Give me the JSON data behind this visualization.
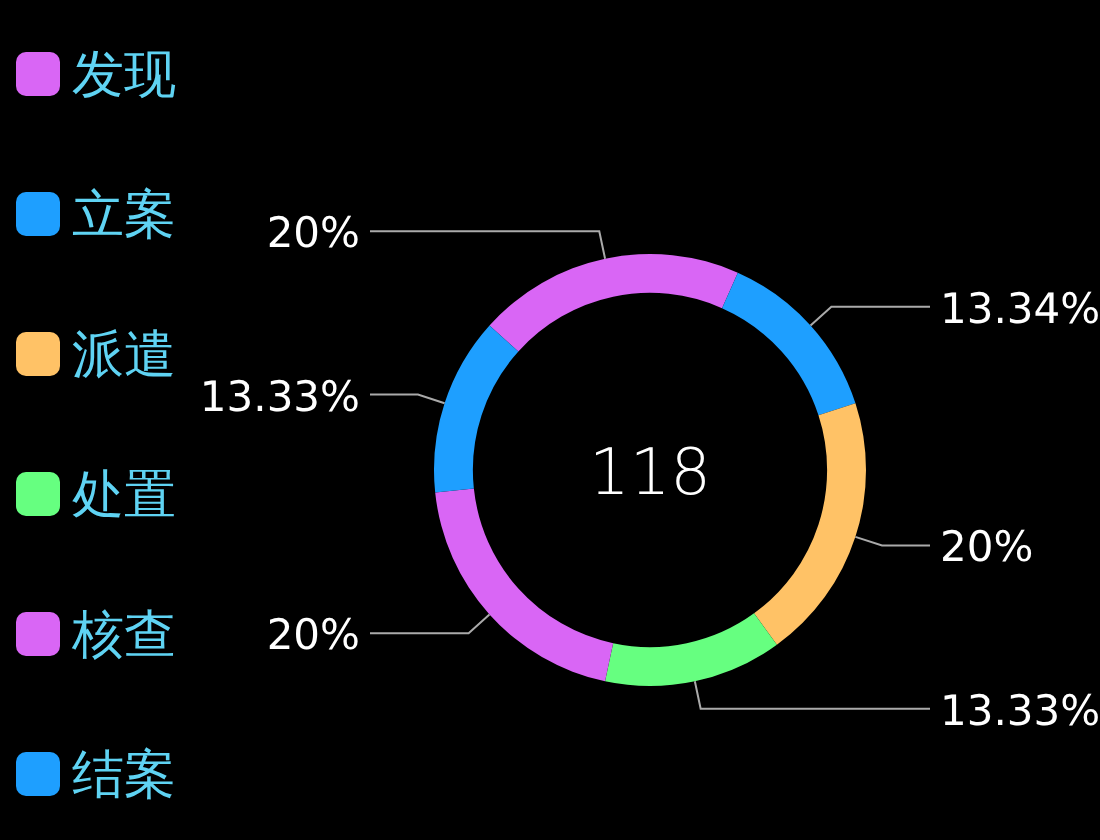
{
  "chart_data": {
    "type": "donut",
    "categories": [
      "发现",
      "立案",
      "派遣",
      "处置",
      "核查",
      "结案"
    ],
    "values": [
      20,
      13.34,
      20,
      13.33,
      20,
      13.33
    ],
    "value_labels": [
      "20%",
      "13.34%",
      "20%",
      "13.33%",
      "20%",
      "13.33%"
    ],
    "colors": [
      "#d966f5",
      "#1e9fff",
      "#ffc266",
      "#66ff80",
      "#d966f5",
      "#1e9fff"
    ],
    "annotations": [
      "118"
    ],
    "legend": "left"
  }
}
